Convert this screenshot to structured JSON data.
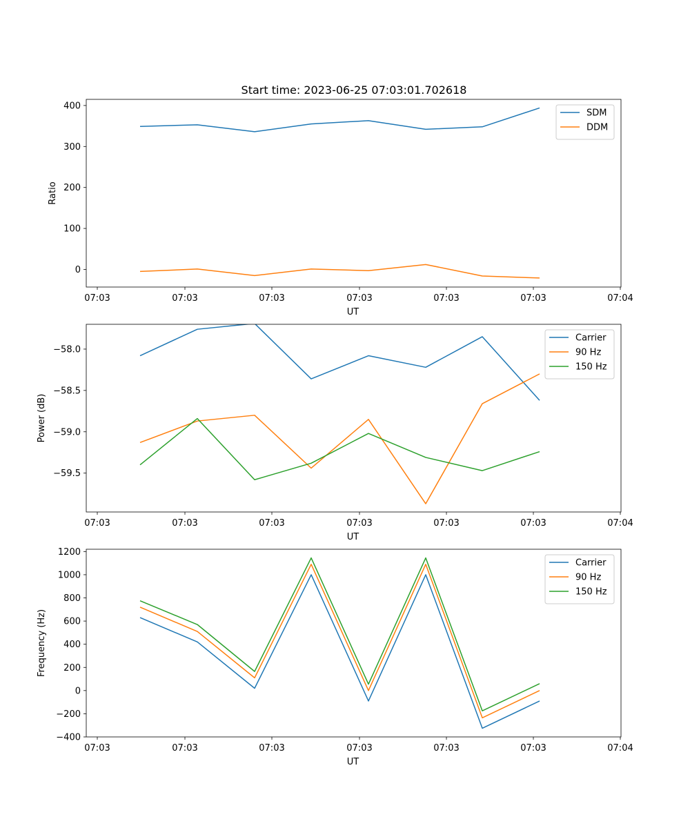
{
  "figure_title": "Start time: 2023-06-25 07:03:01.702618",
  "chart_data": [
    {
      "type": "line",
      "xlabel": "UT",
      "ylabel": "Ratio",
      "x_tick_labels": [
        "07:03",
        "07:03",
        "07:03",
        "07:03",
        "07:03",
        "07:03",
        "07:04"
      ],
      "yticks": [
        0,
        100,
        200,
        300,
        400
      ],
      "ylim": [
        -43,
        415
      ],
      "legend_position": "upper right",
      "series": [
        {
          "name": "SDM",
          "color": "#1f77b4",
          "values": [
            349,
            353,
            336,
            355,
            363,
            342,
            348,
            394
          ]
        },
        {
          "name": "DDM",
          "color": "#ff7f0e",
          "values": [
            -5,
            1,
            -15,
            1,
            -3,
            12,
            -16,
            -21
          ]
        }
      ]
    },
    {
      "type": "line",
      "xlabel": "UT",
      "ylabel": "Power (dB)",
      "x_tick_labels": [
        "07:03",
        "07:03",
        "07:03",
        "07:03",
        "07:03",
        "07:03",
        "07:04"
      ],
      "yticks": [
        -58.0,
        -58.5,
        -59.0,
        -59.5
      ],
      "ytick_labels": [
        "−58.0",
        "−58.5",
        "−59.0",
        "−59.5"
      ],
      "ylim": [
        -59.97,
        -57.7
      ],
      "legend_position": "upper right",
      "series": [
        {
          "name": "Carrier",
          "color": "#1f77b4",
          "values": [
            -58.08,
            -57.76,
            -57.69,
            -58.36,
            -58.08,
            -58.22,
            -57.85,
            -58.62
          ]
        },
        {
          "name": "90 Hz",
          "color": "#ff7f0e",
          "values": [
            -59.13,
            -58.87,
            -58.8,
            -59.44,
            -58.85,
            -59.87,
            -58.66,
            -58.3
          ]
        },
        {
          "name": "150 Hz",
          "color": "#2ca02c",
          "values": [
            -59.4,
            -58.84,
            -59.58,
            -59.38,
            -59.02,
            -59.31,
            -59.47,
            -59.24
          ]
        }
      ]
    },
    {
      "type": "line",
      "xlabel": "UT",
      "ylabel": "Frequency (Hz)",
      "x_tick_labels": [
        "07:03",
        "07:03",
        "07:03",
        "07:03",
        "07:03",
        "07:03",
        "07:04"
      ],
      "yticks": [
        -400,
        -200,
        0,
        200,
        400,
        600,
        800,
        1000,
        1200
      ],
      "ytick_labels": [
        "−400",
        "−200",
        "0",
        "200",
        "400",
        "600",
        "800",
        "1000",
        "1200"
      ],
      "ylim": [
        -400,
        1220
      ],
      "legend_position": "upper right",
      "series": [
        {
          "name": "Carrier",
          "color": "#1f77b4",
          "values": [
            630,
            420,
            20,
            1000,
            -90,
            1000,
            -325,
            -90
          ]
        },
        {
          "name": "90 Hz",
          "color": "#ff7f0e",
          "values": [
            720,
            510,
            110,
            1090,
            0,
            1090,
            -235,
            0
          ]
        },
        {
          "name": "150 Hz",
          "color": "#2ca02c",
          "values": [
            775,
            570,
            165,
            1145,
            55,
            1145,
            -175,
            60
          ]
        }
      ]
    }
  ]
}
